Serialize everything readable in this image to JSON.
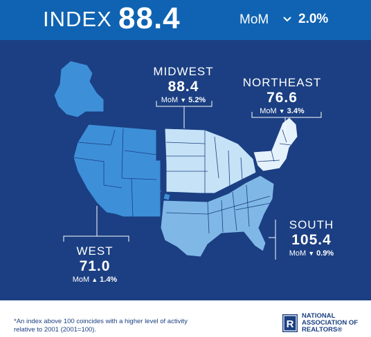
{
  "header": {
    "index_label": "INDEX",
    "index_value": "88.4",
    "mom_label": "MoM",
    "mom_value": "2.0%"
  },
  "regions": {
    "midwest": {
      "name": "MIDWEST",
      "value": "88.4",
      "mom_label": "MoM",
      "mom_value": "5.2%",
      "direction": "down"
    },
    "northeast": {
      "name": "NORTHEAST",
      "value": "76.6",
      "mom_label": "MoM",
      "mom_value": "3.4%",
      "direction": "down"
    },
    "south": {
      "name": "SOUTH",
      "value": "105.4",
      "mom_label": "MoM",
      "mom_value": "0.9%",
      "direction": "down"
    },
    "west": {
      "name": "WEST",
      "value": "71.0",
      "mom_label": "MoM",
      "mom_value": "1.4%",
      "direction": "up"
    }
  },
  "footer": {
    "footnote": "*An index above 100 coincides with a higher level of activity relative to 2001 (2001=100).",
    "logo_letter": "R",
    "logo_line1": "NATIONAL",
    "logo_line2": "ASSOCIATION OF",
    "logo_line3": "REALTORS®"
  },
  "colors": {
    "header_blue": "#0f63b2",
    "background_navy": "#1b3f82",
    "west_fill": "#3d8fd8",
    "midwest_fill": "#c6e2f7",
    "northeast_fill": "#e6f2fb",
    "south_fill": "#7fb8e6"
  }
}
